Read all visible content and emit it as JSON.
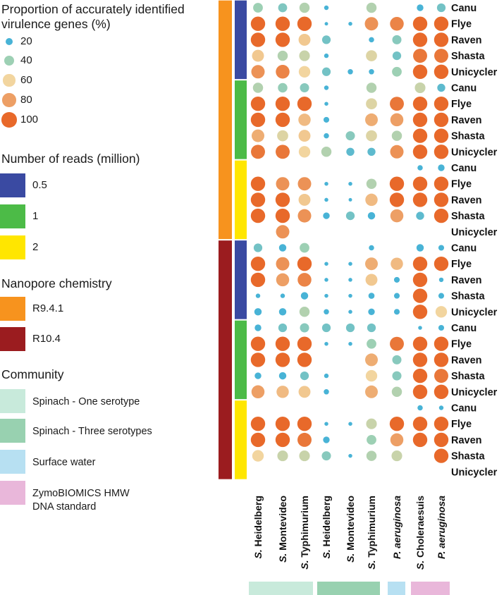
{
  "legend": {
    "size_title": "Proportion of accurately identified\nvirulence genes (%)",
    "size_entries": [
      {
        "label": "20",
        "value": 20
      },
      {
        "label": "40",
        "value": 40
      },
      {
        "label": "60",
        "value": 60
      },
      {
        "label": "80",
        "value": 80
      },
      {
        "label": "100",
        "value": 100
      }
    ],
    "reads_title": "Number of reads (million)",
    "reads_entries": [
      {
        "label": "0.5",
        "color": "#3a4aa2"
      },
      {
        "label": "1",
        "color": "#4cbb47"
      },
      {
        "label": "2",
        "color": "#ffe600"
      }
    ],
    "chem_title": "Nanopore chemistry",
    "chem_entries": [
      {
        "label": "R9.4.1",
        "color": "#f7931e"
      },
      {
        "label": "R10.4",
        "color": "#9b1c1f"
      }
    ],
    "community_title": "Community",
    "community_entries": [
      {
        "label": "Spinach - One serotype",
        "color": "#c8eadb"
      },
      {
        "label": "Spinach - Three serotypes",
        "color": "#98d1b0"
      },
      {
        "label": "Surface water",
        "color": "#b7e0f2"
      },
      {
        "label": "ZymoBIOMICS HMW\nDNA standard",
        "color": "#e9b7da"
      }
    ]
  },
  "chart_data": {
    "type": "dot-heatmap",
    "title": "Proportion of accurately identified virulence genes (%)",
    "size_scale": [
      0,
      100
    ],
    "colors": {
      "low": "#48b3d6",
      "mid": "#f2d59f",
      "high": "#e8692a"
    },
    "columns": [
      {
        "prefix": "S.",
        "name": " Heidelberg",
        "community": 0
      },
      {
        "prefix": "S.",
        "name": " Montevideo",
        "community": 0
      },
      {
        "prefix": "S.",
        "name": " Typhimurium",
        "community": 0
      },
      {
        "prefix": "S.",
        "name": " Heidelberg",
        "community": 1
      },
      {
        "prefix": "S.",
        "name": " Montevideo",
        "community": 1
      },
      {
        "prefix": "S.",
        "name": " Typhimurium",
        "community": 1
      },
      {
        "prefix": "P.",
        "name": " aeruginosa",
        "community": 2
      },
      {
        "prefix": "S.",
        "name": " Choleraesuis",
        "community": 3
      },
      {
        "prefix": "P.",
        "name": " aeruginosa",
        "community": 3
      }
    ],
    "community_colors": [
      "#c8eadb",
      "#98d1b0",
      "#b7e0f2",
      "#e9b7da"
    ],
    "chemistry_colors": [
      "#f7931e",
      "#9b1c1f"
    ],
    "reads_colors": [
      "#3a4aa2",
      "#4cbb47",
      "#ffe600"
    ],
    "assemblers": [
      "Canu",
      "Flye",
      "Raven",
      "Shasta",
      "Unicycler"
    ],
    "blocks": [
      {
        "chemistry": 0,
        "reads": 0,
        "rows": [
          {
            "label": "Canu",
            "values": [
              40,
              33,
              45,
              5,
              null,
              45,
              null,
              15,
              30
            ]
          },
          {
            "label": "Flye",
            "values": [
              100,
              100,
              100,
              2,
              3,
              85,
              90,
              100,
              100
            ]
          },
          {
            "label": "Raven",
            "values": [
              100,
              100,
              65,
              30,
              null,
              8,
              35,
              100,
              100
            ]
          },
          {
            "label": "Shasta",
            "values": [
              65,
              45,
              50,
              5,
              null,
              55,
              30,
              95,
              95
            ]
          },
          {
            "label": "Unicycler",
            "values": [
              85,
              90,
              60,
              30,
              8,
              8,
              40,
              100,
              100
            ]
          }
        ]
      },
      {
        "chemistry": 0,
        "reads": 1,
        "rows": [
          {
            "label": "Canu",
            "values": [
              45,
              38,
              35,
              5,
              null,
              45,
              null,
              50,
              25
            ]
          },
          {
            "label": "Flye",
            "values": [
              100,
              100,
              100,
              3,
              null,
              55,
              95,
              100,
              100
            ]
          },
          {
            "label": "Raven",
            "values": [
              100,
              100,
              70,
              10,
              null,
              75,
              80,
              100,
              100
            ]
          },
          {
            "label": "Shasta",
            "values": [
              75,
              55,
              65,
              8,
              35,
              55,
              45,
              100,
              100
            ]
          },
          {
            "label": "Unicycler",
            "values": [
              95,
              95,
              60,
              45,
              25,
              25,
              85,
              100,
              100
            ]
          }
        ]
      },
      {
        "chemistry": 0,
        "reads": 2,
        "rows": [
          {
            "label": "Canu",
            "values": [
              null,
              null,
              null,
              null,
              null,
              null,
              null,
              8,
              15
            ]
          },
          {
            "label": "Flye",
            "values": [
              100,
              85,
              85,
              3,
              3,
              45,
              100,
              100,
              100
            ]
          },
          {
            "label": "Raven",
            "values": [
              100,
              100,
              65,
              3,
              2,
              70,
              100,
              100,
              100
            ]
          },
          {
            "label": "Shasta",
            "values": [
              100,
              100,
              85,
              15,
              30,
              20,
              80,
              25,
              100
            ]
          },
          {
            "label": "Unicycler",
            "values": [
              null,
              85,
              null,
              null,
              null,
              null,
              null,
              null,
              null
            ]
          }
        ]
      },
      {
        "chemistry": 1,
        "reads": 0,
        "rows": [
          {
            "label": "Canu",
            "values": [
              30,
              20,
              40,
              null,
              null,
              8,
              null,
              20,
              10
            ]
          },
          {
            "label": "Flye",
            "values": [
              100,
              85,
              100,
              3,
              3,
              75,
              70,
              100,
              100
            ]
          },
          {
            "label": "Raven",
            "values": [
              100,
              80,
              90,
              3,
              3,
              65,
              10,
              100,
              5
            ]
          },
          {
            "label": "Shasta",
            "values": [
              5,
              5,
              20,
              3,
              3,
              12,
              10,
              100,
              10
            ]
          },
          {
            "label": "Unicycler",
            "values": [
              20,
              20,
              45,
              8,
              3,
              15,
              10,
              100,
              60
            ]
          }
        ]
      },
      {
        "chemistry": 1,
        "reads": 1,
        "rows": [
          {
            "label": "Canu",
            "values": [
              15,
              30,
              35,
              30,
              30,
              30,
              null,
              3,
              10
            ]
          },
          {
            "label": "Flye",
            "values": [
              100,
              100,
              100,
              3,
              3,
              40,
              95,
              100,
              100
            ]
          },
          {
            "label": "Raven",
            "values": [
              100,
              100,
              100,
              null,
              null,
              75,
              35,
              100,
              100
            ]
          },
          {
            "label": "Shasta",
            "values": [
              15,
              20,
              30,
              5,
              null,
              60,
              35,
              100,
              95
            ]
          },
          {
            "label": "Unicycler",
            "values": [
              80,
              70,
              65,
              8,
              null,
              75,
              45,
              100,
              100
            ]
          }
        ]
      },
      {
        "chemistry": 1,
        "reads": 2,
        "rows": [
          {
            "label": "Canu",
            "values": [
              null,
              null,
              null,
              null,
              null,
              null,
              null,
              8,
              5
            ]
          },
          {
            "label": "Flye",
            "values": [
              100,
              100,
              100,
              3,
              3,
              50,
              100,
              100,
              100
            ]
          },
          {
            "label": "Raven",
            "values": [
              100,
              100,
              95,
              15,
              null,
              40,
              80,
              100,
              100
            ]
          },
          {
            "label": "Shasta",
            "values": [
              60,
              50,
              50,
              35,
              3,
              45,
              50,
              null,
              100
            ]
          },
          {
            "label": "Unicycler",
            "values": [
              null,
              null,
              null,
              null,
              null,
              null,
              null,
              null,
              null
            ]
          }
        ]
      }
    ]
  }
}
